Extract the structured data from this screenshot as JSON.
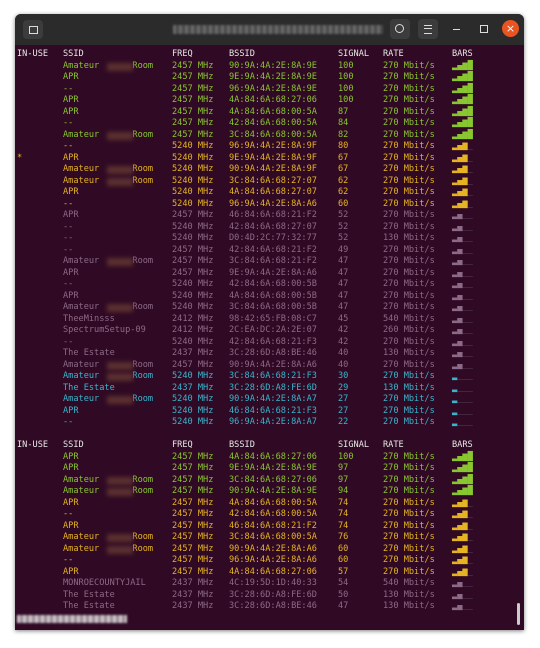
{
  "terminal": {
    "tables": [
      {
        "header": [
          "IN-USE",
          "SSID",
          "FREQ",
          "BSSID",
          "SIGNAL",
          "RATE",
          "BARS"
        ],
        "rows": [
          {
            "in_use": "",
            "ssid": "Amateur Room",
            "redacted": true,
            "freq": "2457 MHz",
            "bssid": "90:9A:4A:2E:8A:9E",
            "signal": "100",
            "rate": "270 Mbit/s",
            "bars": "▂▄▆█",
            "color": "#8ac630"
          },
          {
            "in_use": "",
            "ssid": "APR",
            "freq": "2457 MHz",
            "bssid": "9E:9A:4A:2E:8A:9E",
            "signal": "100",
            "rate": "270 Mbit/s",
            "bars": "▂▄▆█",
            "color": "#8ac630"
          },
          {
            "in_use": "",
            "ssid": "--",
            "freq": "2457 MHz",
            "bssid": "96:9A:4A:2E:8A:9E",
            "signal": "100",
            "rate": "270 Mbit/s",
            "bars": "▂▄▆█",
            "color": "#8ac630"
          },
          {
            "in_use": "",
            "ssid": "APR",
            "freq": "2457 MHz",
            "bssid": "4A:84:6A:68:27:06",
            "signal": "100",
            "rate": "270 Mbit/s",
            "bars": "▂▄▆█",
            "color": "#8ac630"
          },
          {
            "in_use": "",
            "ssid": "APR",
            "freq": "2457 MHz",
            "bssid": "4A:84:6A:68:00:5A",
            "signal": "87",
            "rate": "270 Mbit/s",
            "bars": "▂▄▆█",
            "color": "#8ac630"
          },
          {
            "in_use": "",
            "ssid": "--",
            "freq": "2457 MHz",
            "bssid": "42:84:6A:68:00:5A",
            "signal": "84",
            "rate": "270 Mbit/s",
            "bars": "▂▄▆█",
            "color": "#8ac630"
          },
          {
            "in_use": "",
            "ssid": "Amateur Room",
            "redacted": true,
            "freq": "2457 MHz",
            "bssid": "3C:84:6A:68:00:5A",
            "signal": "82",
            "rate": "270 Mbit/s",
            "bars": "▂▄▆█",
            "color": "#8ac630"
          },
          {
            "in_use": "",
            "ssid": "--",
            "freq": "5240 MHz",
            "bssid": "96:9A:4A:2E:8A:9F",
            "signal": "80",
            "rate": "270 Mbit/s",
            "bars": "▂▄▆_",
            "color": "#e6b422"
          },
          {
            "in_use": "*",
            "ssid": "APR",
            "freq": "5240 MHz",
            "bssid": "9E:9A:4A:2E:8A:9F",
            "signal": "67",
            "rate": "270 Mbit/s",
            "bars": "▂▄▆_",
            "color": "#e6b422"
          },
          {
            "in_use": "",
            "ssid": "Amateur Room",
            "redacted": true,
            "freq": "5240 MHz",
            "bssid": "90:9A:4A:2E:8A:9F",
            "signal": "67",
            "rate": "270 Mbit/s",
            "bars": "▂▄▆_",
            "color": "#e6b422"
          },
          {
            "in_use": "",
            "ssid": "Amateur Room",
            "redacted": true,
            "freq": "5240 MHz",
            "bssid": "3C:84:6A:68:27:07",
            "signal": "62",
            "rate": "270 Mbit/s",
            "bars": "▂▄▆_",
            "color": "#e6b422"
          },
          {
            "in_use": "",
            "ssid": "APR",
            "freq": "5240 MHz",
            "bssid": "4A:84:6A:68:27:07",
            "signal": "62",
            "rate": "270 Mbit/s",
            "bars": "▂▄▆_",
            "color": "#e6b422"
          },
          {
            "in_use": "",
            "ssid": "--",
            "freq": "5240 MHz",
            "bssid": "96:9A:4A:2E:8A:A6",
            "signal": "60",
            "rate": "270 Mbit/s",
            "bars": "▂▄▆_",
            "color": "#e6b422"
          },
          {
            "in_use": "",
            "ssid": "APR",
            "freq": "2457 MHz",
            "bssid": "46:84:6A:68:21:F2",
            "signal": "52",
            "rate": "270 Mbit/s",
            "bars": "▂▄__",
            "color": "#8c6a88"
          },
          {
            "in_use": "",
            "ssid": "--",
            "freq": "5240 MHz",
            "bssid": "42:84:6A:68:27:07",
            "signal": "52",
            "rate": "270 Mbit/s",
            "bars": "▂▄__",
            "color": "#8c6a88"
          },
          {
            "in_use": "",
            "ssid": "--",
            "freq": "5240 MHz",
            "bssid": "D0:4D:2C:77:32:77",
            "signal": "52",
            "rate": "130 Mbit/s",
            "bars": "▂▄__",
            "color": "#8c6a88"
          },
          {
            "in_use": "",
            "ssid": "--",
            "freq": "2457 MHz",
            "bssid": "42:84:6A:68:21:F2",
            "signal": "49",
            "rate": "270 Mbit/s",
            "bars": "▂▄__",
            "color": "#8c6a88"
          },
          {
            "in_use": "",
            "ssid": "Amateur Room",
            "redacted": true,
            "freq": "2457 MHz",
            "bssid": "3C:84:6A:68:21:F2",
            "signal": "47",
            "rate": "270 Mbit/s",
            "bars": "▂▄__",
            "color": "#8c6a88"
          },
          {
            "in_use": "",
            "ssid": "APR",
            "freq": "2457 MHz",
            "bssid": "9E:9A:4A:2E:8A:A6",
            "signal": "47",
            "rate": "270 Mbit/s",
            "bars": "▂▄__",
            "color": "#8c6a88"
          },
          {
            "in_use": "",
            "ssid": "--",
            "freq": "5240 MHz",
            "bssid": "42:84:6A:68:00:5B",
            "signal": "47",
            "rate": "270 Mbit/s",
            "bars": "▂▄__",
            "color": "#8c6a88"
          },
          {
            "in_use": "",
            "ssid": "APR",
            "freq": "5240 MHz",
            "bssid": "4A:84:6A:68:00:5B",
            "signal": "47",
            "rate": "270 Mbit/s",
            "bars": "▂▄__",
            "color": "#8c6a88"
          },
          {
            "in_use": "",
            "ssid": "Amateur Room",
            "redacted": true,
            "freq": "5240 MHz",
            "bssid": "3C:84:6A:68:00:5B",
            "signal": "47",
            "rate": "270 Mbit/s",
            "bars": "▂▄__",
            "color": "#8c6a88"
          },
          {
            "in_use": "",
            "ssid": "TheeMinsss",
            "freq": "2412 MHz",
            "bssid": "98:42:65:FB:08:C7",
            "signal": "45",
            "rate": "540 Mbit/s",
            "bars": "▂▄__",
            "color": "#8c6a88"
          },
          {
            "in_use": "",
            "ssid": "SpectrumSetup-09",
            "freq": "2412 MHz",
            "bssid": "2C:EA:DC:2A:2E:07",
            "signal": "42",
            "rate": "260 Mbit/s",
            "bars": "▂▄__",
            "color": "#8c6a88"
          },
          {
            "in_use": "",
            "ssid": "--",
            "freq": "5240 MHz",
            "bssid": "42:84:6A:68:21:F3",
            "signal": "42",
            "rate": "270 Mbit/s",
            "bars": "▂▄__",
            "color": "#8c6a88"
          },
          {
            "in_use": "",
            "ssid": "The Estate",
            "freq": "2437 MHz",
            "bssid": "3C:28:6D:A8:BE:46",
            "signal": "40",
            "rate": "130 Mbit/s",
            "bars": "▂▄__",
            "color": "#8c6a88"
          },
          {
            "in_use": "",
            "ssid": "Amateur Room",
            "redacted": true,
            "freq": "2457 MHz",
            "bssid": "90:9A:4A:2E:8A:A6",
            "signal": "40",
            "rate": "270 Mbit/s",
            "bars": "▂▄__",
            "color": "#8c6a88"
          },
          {
            "in_use": "",
            "ssid": "Amateur Room",
            "redacted": true,
            "freq": "5240 MHz",
            "bssid": "3C:84:6A:68:21:F3",
            "signal": "30",
            "rate": "270 Mbit/s",
            "bars": "▂___",
            "color": "#3ab4cc"
          },
          {
            "in_use": "",
            "ssid": "The Estate",
            "freq": "2437 MHz",
            "bssid": "3C:28:6D:A8:FE:6D",
            "signal": "29",
            "rate": "130 Mbit/s",
            "bars": "▂___",
            "color": "#3ab4cc"
          },
          {
            "in_use": "",
            "ssid": "Amateur Room",
            "redacted": true,
            "freq": "5240 MHz",
            "bssid": "90:9A:4A:2E:8A:A7",
            "signal": "27",
            "rate": "270 Mbit/s",
            "bars": "▂___",
            "color": "#3ab4cc"
          },
          {
            "in_use": "",
            "ssid": "APR",
            "freq": "5240 MHz",
            "bssid": "46:84:6A:68:21:F3",
            "signal": "27",
            "rate": "270 Mbit/s",
            "bars": "▂___",
            "color": "#3ab4cc"
          },
          {
            "in_use": "",
            "ssid": "--",
            "freq": "5240 MHz",
            "bssid": "96:9A:4A:2E:8A:A7",
            "signal": "22",
            "rate": "270 Mbit/s",
            "bars": "▂___",
            "color": "#3ab4cc"
          }
        ]
      },
      {
        "header": [
          "IN-USE",
          "SSID",
          "FREQ",
          "BSSID",
          "SIGNAL",
          "RATE",
          "BARS"
        ],
        "rows": [
          {
            "in_use": "",
            "ssid": "APR",
            "freq": "2457 MHz",
            "bssid": "4A:84:6A:68:27:06",
            "signal": "100",
            "rate": "270 Mbit/s",
            "bars": "▂▄▆█",
            "color": "#8ac630"
          },
          {
            "in_use": "",
            "ssid": "APR",
            "freq": "2457 MHz",
            "bssid": "9E:9A:4A:2E:8A:9E",
            "signal": "97",
            "rate": "270 Mbit/s",
            "bars": "▂▄▆█",
            "color": "#8ac630"
          },
          {
            "in_use": "",
            "ssid": "Amateur Room",
            "redacted": true,
            "freq": "2457 MHz",
            "bssid": "3C:84:6A:68:27:06",
            "signal": "97",
            "rate": "270 Mbit/s",
            "bars": "▂▄▆█",
            "color": "#8ac630"
          },
          {
            "in_use": "",
            "ssid": "Amateur Room",
            "redacted": true,
            "freq": "2457 MHz",
            "bssid": "90:9A:4A:2E:8A:9E",
            "signal": "94",
            "rate": "270 Mbit/s",
            "bars": "▂▄▆█",
            "color": "#8ac630"
          },
          {
            "in_use": "",
            "ssid": "APR",
            "freq": "2457 MHz",
            "bssid": "4A:84:6A:68:00:5A",
            "signal": "74",
            "rate": "270 Mbit/s",
            "bars": "▂▄▆_",
            "color": "#e6b422"
          },
          {
            "in_use": "",
            "ssid": "--",
            "freq": "2457 MHz",
            "bssid": "42:84:6A:68:00:5A",
            "signal": "74",
            "rate": "270 Mbit/s",
            "bars": "▂▄▆_",
            "color": "#e6b422"
          },
          {
            "in_use": "",
            "ssid": "APR",
            "freq": "2457 MHz",
            "bssid": "46:84:6A:68:21:F2",
            "signal": "74",
            "rate": "270 Mbit/s",
            "bars": "▂▄▆_",
            "color": "#e6b422"
          },
          {
            "in_use": "",
            "ssid": "Amateur Room",
            "redacted": true,
            "freq": "2457 MHz",
            "bssid": "3C:84:6A:68:00:5A",
            "signal": "76",
            "rate": "270 Mbit/s",
            "bars": "▂▄▆_",
            "color": "#e6b422"
          },
          {
            "in_use": "",
            "ssid": "Amateur Room",
            "redacted": true,
            "freq": "2457 MHz",
            "bssid": "90:9A:4A:2E:8A:A6",
            "signal": "60",
            "rate": "270 Mbit/s",
            "bars": "▂▄▆_",
            "color": "#e6b422"
          },
          {
            "in_use": "",
            "ssid": "--",
            "freq": "2457 MHz",
            "bssid": "96:9A:4A:2E:8A:A6",
            "signal": "60",
            "rate": "270 Mbit/s",
            "bars": "▂▄▆_",
            "color": "#e6b422"
          },
          {
            "in_use": "",
            "ssid": "APR",
            "freq": "2457 MHz",
            "bssid": "4A:84:6A:68:27:06",
            "signal": "57",
            "rate": "270 Mbit/s",
            "bars": "▂▄▆_",
            "color": "#e6b422"
          },
          {
            "in_use": "",
            "ssid": "MONROECOUNTYJAIL",
            "freq": "2437 MHz",
            "bssid": "4C:19:5D:1D:40:33",
            "signal": "54",
            "rate": "540 Mbit/s",
            "bars": "▂▄__",
            "color": "#8c6a88"
          },
          {
            "in_use": "",
            "ssid": "The Estate",
            "freq": "2437 MHz",
            "bssid": "3C:28:6D:A8:FE:6D",
            "signal": "50",
            "rate": "130 Mbit/s",
            "bars": "▂▄__",
            "color": "#8c6a88"
          },
          {
            "in_use": "",
            "ssid": "The Estate",
            "freq": "2437 MHz",
            "bssid": "3C:28:6D:A8:BE:46",
            "signal": "47",
            "rate": "130 Mbit/s",
            "bars": "▂▄__",
            "color": "#8c6a88"
          }
        ]
      }
    ]
  }
}
